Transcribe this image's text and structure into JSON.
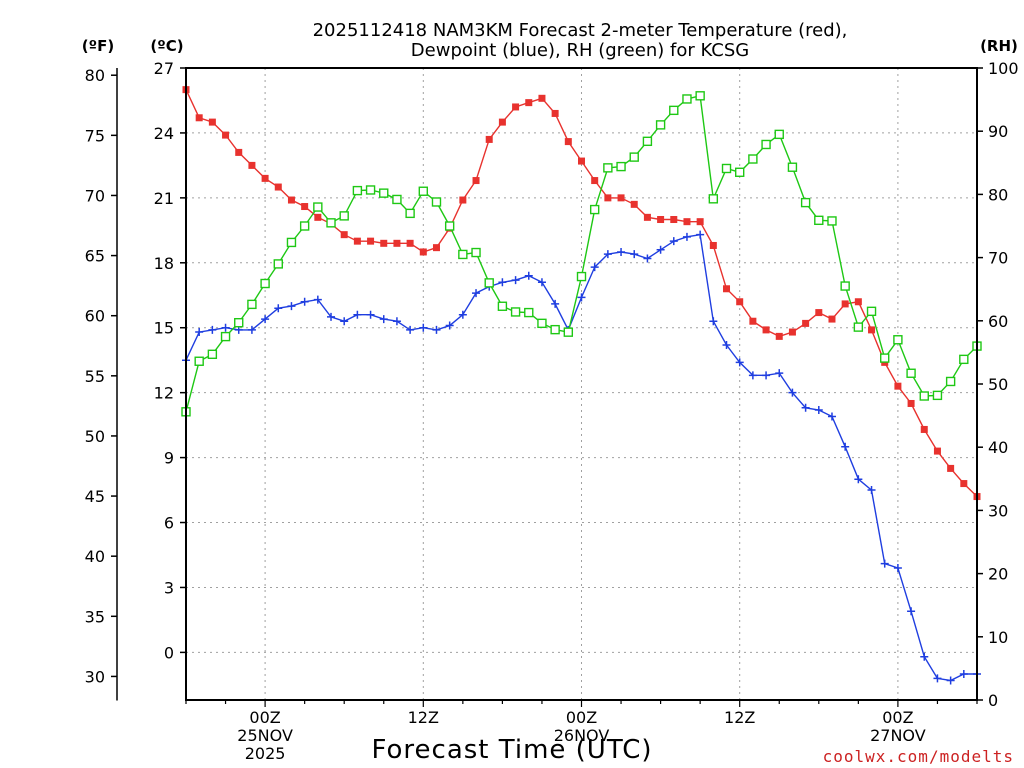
{
  "page": {
    "title_line1": "2025112418 NAM3KM Forecast 2-meter Temperature (red),",
    "title_line2": "Dewpoint (blue), RH (green) for KCSG",
    "credit": "coolwx.com/modelts"
  },
  "chart_data": {
    "type": "line",
    "title": "2025112418 NAM3KM Forecast 2-meter Temperature (red), Dewpoint (blue), RH (green) for KCSG",
    "xlabel": "Forecast Time (UTC)",
    "x_unit": "forecast hours from 2025-11-24 18Z",
    "xlim": [
      0,
      60
    ],
    "x_ticks": [
      {
        "hour": 6,
        "line1": "00Z",
        "line2": "25NOV",
        "line3": "2025"
      },
      {
        "hour": 18,
        "line1": "12Z",
        "line2": "",
        "line3": ""
      },
      {
        "hour": 30,
        "line1": "00Z",
        "line2": "26NOV",
        "line3": ""
      },
      {
        "hour": 42,
        "line1": "12Z",
        "line2": "",
        "line3": ""
      },
      {
        "hour": 54,
        "line1": "00Z",
        "line2": "27NOV",
        "line3": ""
      }
    ],
    "axes": {
      "fahrenheit": {
        "label": "(ºF)",
        "range": [
          28,
          80.6
        ],
        "ticks": [
          30,
          35,
          40,
          45,
          50,
          55,
          60,
          65,
          70,
          75,
          80
        ]
      },
      "celsius": {
        "label": "(ºC)",
        "range": [
          -2.2,
          27
        ],
        "ticks": [
          0,
          3,
          6,
          9,
          12,
          15,
          18,
          21,
          24,
          27
        ]
      },
      "rh": {
        "label": "(RH)",
        "range": [
          0,
          100
        ],
        "ticks": [
          0,
          10,
          20,
          30,
          40,
          50,
          60,
          70,
          80,
          90,
          100
        ]
      }
    },
    "grid": true,
    "series": [
      {
        "name": "2-meter Temperature",
        "unit": "C",
        "color": "#e8322e",
        "marker": "filled-square",
        "values": [
          26.0,
          24.7,
          24.5,
          23.9,
          23.1,
          22.5,
          21.9,
          21.5,
          20.9,
          20.6,
          20.1,
          19.8,
          19.3,
          19.0,
          19.0,
          18.9,
          18.9,
          18.9,
          18.5,
          18.7,
          19.6,
          20.9,
          21.8,
          23.7,
          24.5,
          25.2,
          25.4,
          25.6,
          24.9,
          23.6,
          22.7,
          21.8,
          21.0,
          21.0,
          20.7,
          20.1,
          20.0,
          20.0,
          19.9,
          19.9,
          18.8,
          16.8,
          16.2,
          15.3,
          14.9,
          14.6,
          14.8,
          15.2,
          15.7,
          15.4,
          16.1,
          16.2,
          14.9,
          13.4,
          12.3,
          11.5,
          10.3,
          9.3,
          8.5,
          7.8,
          7.2
        ]
      },
      {
        "name": "Dewpoint",
        "unit": "C",
        "color": "#1f3ee0",
        "marker": "plus",
        "values": [
          13.5,
          14.8,
          14.9,
          15.0,
          14.9,
          14.9,
          15.4,
          15.9,
          16.0,
          16.2,
          16.3,
          15.5,
          15.3,
          15.6,
          15.6,
          15.4,
          15.3,
          14.9,
          15.0,
          14.9,
          15.1,
          15.6,
          16.6,
          16.9,
          17.1,
          17.2,
          17.4,
          17.1,
          16.1,
          14.9,
          16.4,
          17.8,
          18.4,
          18.5,
          18.4,
          18.2,
          18.6,
          19.0,
          19.2,
          19.3,
          15.3,
          14.2,
          13.4,
          12.8,
          12.8,
          12.9,
          12.0,
          11.3,
          11.2,
          10.9,
          9.5,
          8.0,
          7.5,
          4.1,
          3.9,
          1.9,
          -0.2,
          -1.2,
          -1.3,
          -1.0,
          -1.0
        ]
      },
      {
        "name": "RH",
        "unit": "%",
        "color": "#1ec814",
        "marker": "open-square",
        "values": [
          45.6,
          53.6,
          54.7,
          57.5,
          59.7,
          62.6,
          65.9,
          69.0,
          72.4,
          75.0,
          78.0,
          75.5,
          76.6,
          80.6,
          80.7,
          80.2,
          79.2,
          77.0,
          80.5,
          78.8,
          75.0,
          70.5,
          70.8,
          66.0,
          62.3,
          61.4,
          61.3,
          59.6,
          58.6,
          58.2,
          67.0,
          77.6,
          84.2,
          84.4,
          85.9,
          88.4,
          91.0,
          93.3,
          95.1,
          95.6,
          79.3,
          84.1,
          83.5,
          85.6,
          87.9,
          89.5,
          84.3,
          78.7,
          75.9,
          75.8,
          65.5,
          59.0,
          61.5,
          54.1,
          57.0,
          51.7,
          48.1,
          48.2,
          50.4,
          53.9,
          56.0
        ]
      }
    ]
  }
}
